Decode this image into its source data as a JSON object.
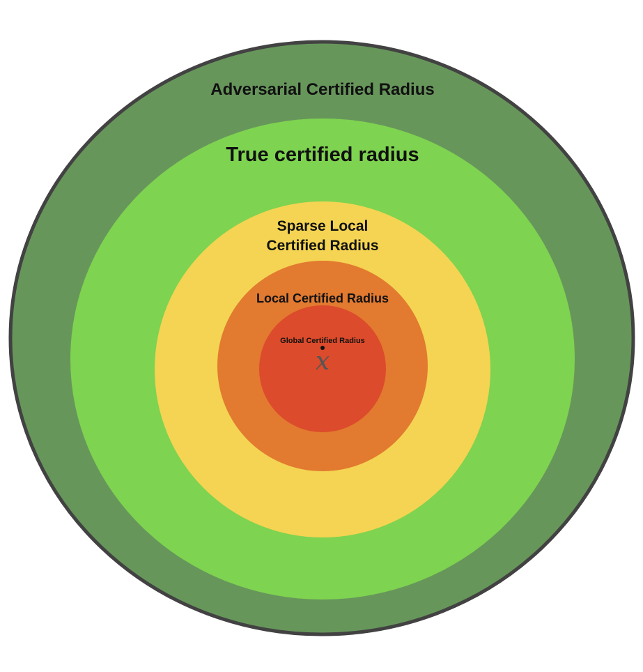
{
  "regions": [
    {
      "id": "adversarial",
      "label": "Adversarial Certified Radius",
      "color": "#67965b"
    },
    {
      "id": "true",
      "label": "True certified radius",
      "color": "#7ed350"
    },
    {
      "id": "sparse_local",
      "label_lines": [
        "Sparse Local",
        "Certified Radius"
      ],
      "color": "#f4d452"
    },
    {
      "id": "local",
      "label": "Local Certified Radius",
      "color": "#e27a30"
    },
    {
      "id": "global",
      "label": "Global Certified Radius",
      "color": "#dc4b2b"
    }
  ],
  "outline_color": "#424242",
  "point": {
    "label": "x",
    "color": "#111111"
  }
}
